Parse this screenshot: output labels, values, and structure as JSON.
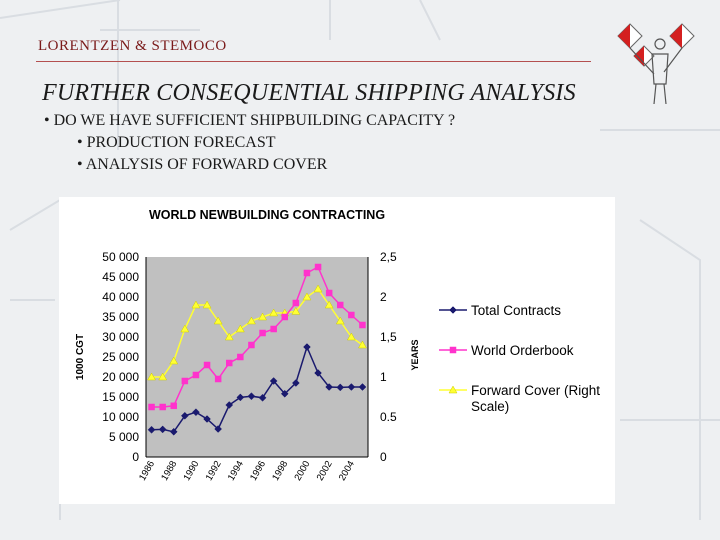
{
  "header": {
    "company": "LORENTZEN & STEMOCO",
    "title": "FURTHER CONSEQUENTIAL SHIPPING ANALYSIS"
  },
  "bullets": [
    {
      "text": "• DO WE HAVE SUFFICIENT SHIPBUILDING CAPACITY ?",
      "level": 0
    },
    {
      "text": "• PRODUCTION FORECAST",
      "level": 1
    },
    {
      "text": "• ANALYSIS OF FORWARD COVER",
      "level": 1
    }
  ],
  "colors": {
    "accent": "#7a1a1a",
    "total_contracts": "#1a1a6e",
    "world_orderbook": "#ff33cc",
    "forward_cover": "#ffff33"
  },
  "chart_data": {
    "type": "line",
    "title": "WORLD NEWBUILDING CONTRACTING",
    "ylabel": "1000 CGT",
    "y2label": "YEARS",
    "x": [
      1986,
      1987,
      1988,
      1989,
      1990,
      1991,
      1992,
      1993,
      1994,
      1995,
      1996,
      1997,
      1998,
      1999,
      2000,
      2001,
      2002,
      2003,
      2004,
      2005
    ],
    "xticks": [
      "1986",
      "1988",
      "1990",
      "1992",
      "1994",
      "1996",
      "1998",
      "2000",
      "2002",
      "2004"
    ],
    "ylim": [
      0,
      50000
    ],
    "yticks": [
      "0",
      "5 000",
      "10 000",
      "15 000",
      "20 000",
      "25 000",
      "30 000",
      "35 000",
      "40 000",
      "45 000",
      "50 000"
    ],
    "y2lim": [
      0,
      2.5
    ],
    "y2ticks": [
      "0",
      "0.5",
      "1",
      "1,5",
      "2",
      "2,5"
    ],
    "legend_position": "right",
    "grid": false,
    "series": [
      {
        "name": "Total Contracts",
        "axis": "left",
        "marker": "diamond",
        "color": "#1a1a6e",
        "values": [
          6800,
          6900,
          6300,
          10300,
          11200,
          9500,
          7000,
          13000,
          14900,
          15200,
          14800,
          19000,
          15800,
          18500,
          27500,
          21000,
          17500,
          17400,
          17500,
          17500
        ]
      },
      {
        "name": "World Orderbook",
        "axis": "left",
        "marker": "square",
        "color": "#ff33cc",
        "values": [
          12500,
          12500,
          12800,
          19000,
          20500,
          23000,
          19500,
          23500,
          25000,
          28000,
          31000,
          32000,
          35000,
          38500,
          46000,
          47500,
          41000,
          38000,
          35500,
          33000
        ]
      },
      {
        "name": "Forward Cover (Right Scale)",
        "axis": "right",
        "marker": "triangle",
        "color": "#ffff33",
        "values": [
          1.0,
          1.0,
          1.2,
          1.6,
          1.9,
          1.9,
          1.7,
          1.5,
          1.6,
          1.7,
          1.75,
          1.8,
          1.8,
          1.82,
          2.0,
          2.1,
          1.9,
          1.7,
          1.5,
          1.4
        ]
      }
    ]
  }
}
